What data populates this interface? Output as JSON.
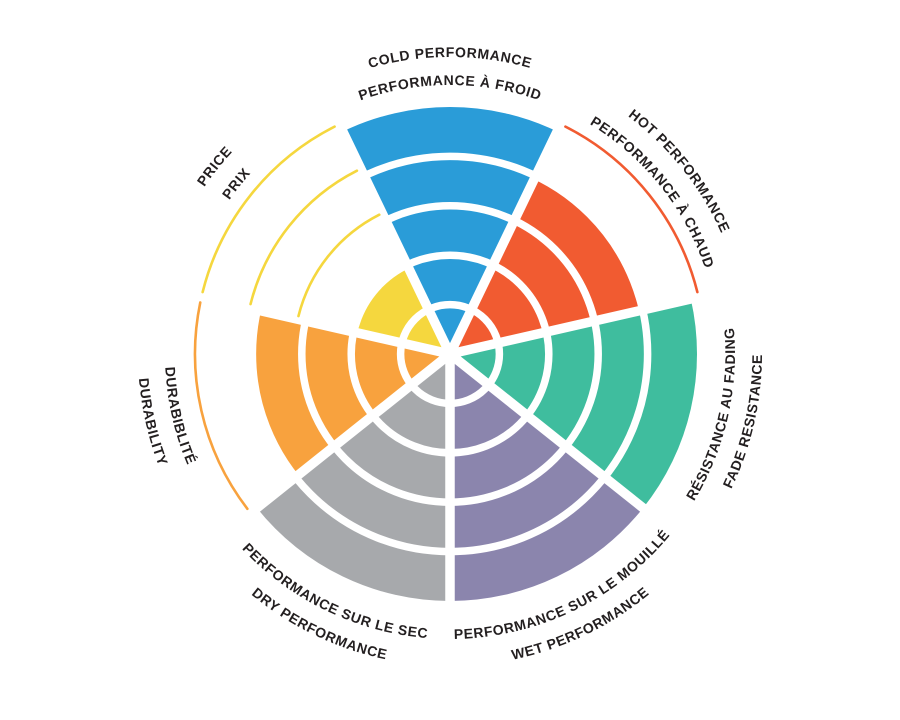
{
  "page": {
    "background": "#FFFFFF",
    "description": "Bilingual (English/French) brake pad performance rating wheel"
  },
  "chart_data": {
    "type": "pie",
    "subtype": "polar-rating-wheel",
    "rings": 5,
    "max_value": 5,
    "start_sector": "COLD PERFORMANCE centered at top, sectors proceed clockwise",
    "grid": "white concentric ring gaps and white radial gaps between equal 1/7 sectors; unfilled ring levels shown as thin colored arcs",
    "label_color": "#231F20",
    "background": "#FFFFFF",
    "segments": [
      {
        "id": "cold",
        "label_en": "COLD PERFORMANCE",
        "label_fr": "PERFORMANCE À FROID",
        "value": 5,
        "color": "#2A9CD8"
      },
      {
        "id": "hot",
        "label_en": "HOT PERFORMANCE",
        "label_fr": "PERFORMANCE À CHAUD",
        "value": 4,
        "color": "#F15B31"
      },
      {
        "id": "fade",
        "label_en": "FADE RESISTANCE",
        "label_fr": "RÉSISTANCE AU FADING",
        "value": 5,
        "color": "#3FBD9E"
      },
      {
        "id": "wet",
        "label_en": "WET PERFORMANCE",
        "label_fr": "PERFORMANCE SUR LE MOUILLÉ",
        "value": 5,
        "color": "#8B85AD"
      },
      {
        "id": "dry",
        "label_en": "DRY PERFORMANCE",
        "label_fr": "PERFORMANCE SUR LE SEC",
        "value": 5,
        "color": "#A7A9AC"
      },
      {
        "id": "durability",
        "label_en": "DURABILITY",
        "label_fr": "DURABIBLITÉ",
        "value": 4,
        "color": "#F8A23E"
      },
      {
        "id": "price",
        "label_en": "PRICE",
        "label_fr": "PRIX",
        "value": 2,
        "color": "#F5D73E"
      }
    ]
  }
}
